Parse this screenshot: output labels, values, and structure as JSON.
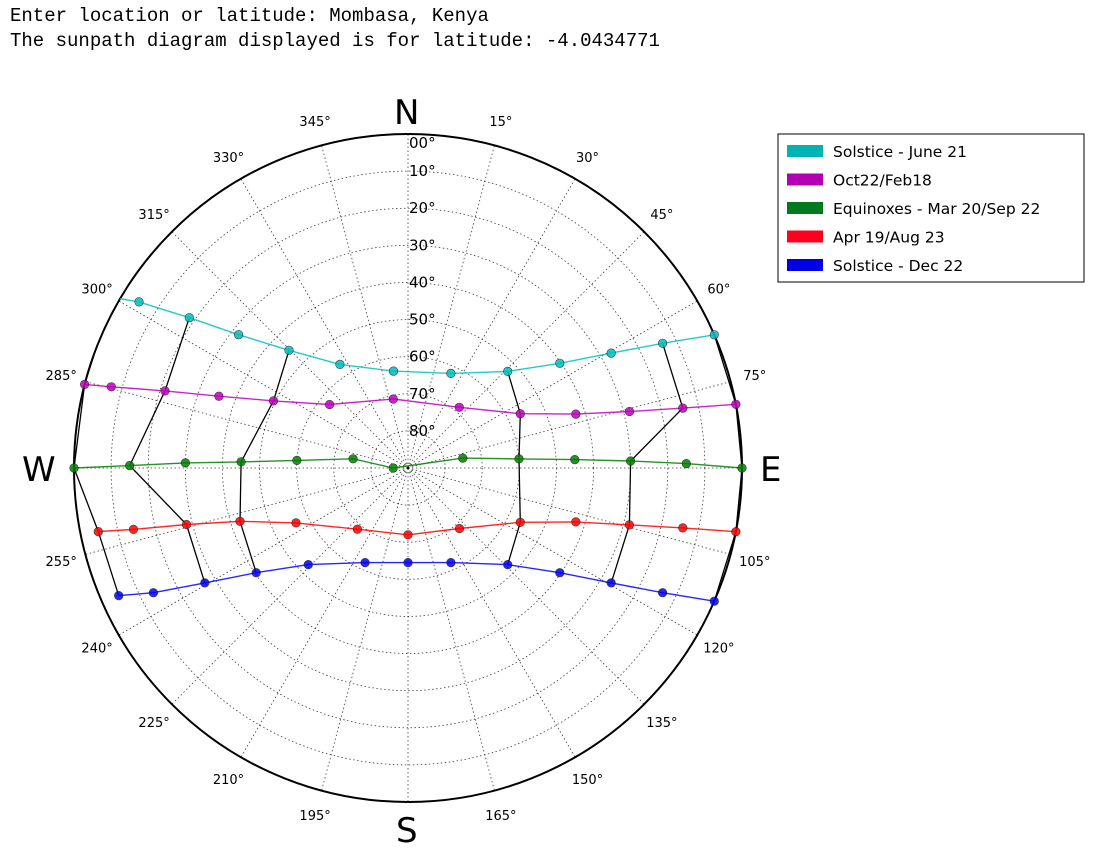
{
  "console": {
    "line1": "Enter location or latitude: Mombasa, Kenya",
    "line2": "The sunpath diagram displayed is for latitude: -4.0434771"
  },
  "chart_data": {
    "type": "polar-scatter-line",
    "projection": "sunpath (azimuth clockwise from North, altitude 0 at rim, 90 at centre)",
    "cardinals": {
      "N": "N",
      "E": "E",
      "S": "S",
      "W": "W"
    },
    "azimuth_ticks": [
      {
        "deg": 0,
        "label": "00°"
      },
      {
        "deg": 15,
        "label": "15°"
      },
      {
        "deg": 30,
        "label": "30°"
      },
      {
        "deg": 45,
        "label": "45°"
      },
      {
        "deg": 60,
        "label": "60°"
      },
      {
        "deg": 75,
        "label": "75°"
      },
      {
        "deg": 105,
        "label": "105°"
      },
      {
        "deg": 120,
        "label": "120°"
      },
      {
        "deg": 135,
        "label": "135°"
      },
      {
        "deg": 150,
        "label": "150°"
      },
      {
        "deg": 165,
        "label": "165°"
      },
      {
        "deg": 195,
        "label": "195°"
      },
      {
        "deg": 210,
        "label": "210°"
      },
      {
        "deg": 225,
        "label": "225°"
      },
      {
        "deg": 240,
        "label": "240°"
      },
      {
        "deg": 255,
        "label": "255°"
      },
      {
        "deg": 285,
        "label": "285°"
      },
      {
        "deg": 300,
        "label": "300°"
      },
      {
        "deg": 315,
        "label": "315°"
      },
      {
        "deg": 330,
        "label": "330°"
      },
      {
        "deg": 345,
        "label": "345°"
      }
    ],
    "altitude_rings": [
      10,
      20,
      30,
      40,
      50,
      60,
      70,
      80
    ],
    "altitude_labels": [
      "10°",
      "20°",
      "30°",
      "40°",
      "50°",
      "60°",
      "70°",
      "80°"
    ],
    "legend_position": "outside-right",
    "series": [
      {
        "name": "Solstice - June 21",
        "color": "#00bfbf",
        "legend_color": "#00b3b3",
        "points": [
          [
            66.5,
            0
          ],
          [
            63.9,
            13.6
          ],
          [
            60.5,
            27.1
          ],
          [
            55.4,
            40.3
          ],
          [
            45.9,
            52.6
          ],
          [
            24.4,
            62
          ],
          [
            -8.5,
            63.6
          ],
          [
            -33.3,
            56.6
          ],
          [
            -45.3,
            44.9
          ],
          [
            -51.8,
            31.9
          ],
          [
            -55.5,
            18.5
          ],
          [
            -58.3,
            4.8
          ],
          [
            -60,
            -2
          ]
        ]
      },
      {
        "name": "Oct22/Feb18",
        "color": "#bf00bf",
        "legend_color": "#b300b3",
        "points": [
          [
            79,
            0
          ],
          [
            77.7,
            14.2
          ],
          [
            75.7,
            28.4
          ],
          [
            72.2,
            42.5
          ],
          [
            64.2,
            56.4
          ],
          [
            40.2,
            68.6
          ],
          [
            -12,
            71
          ],
          [
            -51,
            62.8
          ],
          [
            -63.5,
            49.5
          ],
          [
            -69.2,
            35.5
          ],
          [
            -72.4,
            21.3
          ],
          [
            -74.7,
            7.1
          ],
          [
            -75.5,
            0
          ]
        ]
      },
      {
        "name": "Equinoxes - Mar 20/Sep 22",
        "color": "#008000",
        "legend_color": "#007a1f",
        "points": [
          [
            90,
            0
          ],
          [
            89.1,
            15
          ],
          [
            88.2,
            30
          ],
          [
            87.1,
            45
          ],
          [
            85.3,
            60
          ],
          [
            79.8,
            75
          ],
          [
            -90,
            86
          ],
          [
            -80.5,
            75
          ],
          [
            -86.1,
            60
          ],
          [
            -87.9,
            45
          ],
          [
            -88.7,
            30
          ],
          [
            -89.5,
            15
          ],
          [
            -90,
            0
          ]
        ]
      },
      {
        "name": "Apr 19/Aug 23",
        "color": "#ff0000",
        "legend_color": "#ff001f",
        "points": [
          [
            101,
            0
          ],
          [
            102.3,
            14.2
          ],
          [
            104.4,
            28.4
          ],
          [
            107.8,
            42.5
          ],
          [
            115.8,
            56.4
          ],
          [
            139.6,
            68.6
          ],
          [
            180,
            72
          ],
          [
            -140.4,
            68.6
          ],
          [
            -116.1,
            56.4
          ],
          [
            -107.6,
            42.5
          ],
          [
            -104.3,
            28.4
          ],
          [
            -102.6,
            14.2
          ],
          [
            -101.6,
            4.8
          ]
        ]
      },
      {
        "name": "Solstice - Dec 22",
        "color": "#0000ff",
        "legend_color": "#0000e6",
        "points": [
          [
            113.5,
            0
          ],
          [
            116.1,
            13.6
          ],
          [
            119.5,
            27.1
          ],
          [
            124.6,
            40.3
          ],
          [
            134.1,
            52.6
          ],
          [
            155.6,
            62
          ],
          [
            180,
            64.5
          ],
          [
            -155.6,
            62
          ],
          [
            -134.1,
            52.6
          ],
          [
            -124.6,
            40.3
          ],
          [
            -119.5,
            27.1
          ],
          [
            -116.1,
            13.6
          ],
          [
            -113.8,
            4.8
          ]
        ]
      }
    ],
    "hour_line_color": "#000000",
    "hour_lines": [
      [
        [
          -60,
          -2
        ],
        [
          -75.5,
          0
        ],
        [
          -90,
          0
        ],
        [
          -101.6,
          4.8
        ],
        [
          -113.8,
          4.8
        ]
      ],
      [
        [
          -55.5,
          18.5
        ],
        [
          -72.4,
          21.3
        ],
        [
          -89.5,
          15
        ],
        [
          -104.3,
          28.4
        ],
        [
          -119.5,
          27.1
        ]
      ],
      [
        [
          -45.3,
          44.9
        ],
        [
          -63.5,
          49.5
        ],
        [
          -87.9,
          45
        ],
        [
          -107.6,
          42.5
        ],
        [
          -124.6,
          40.3
        ]
      ],
      [
        [
          45.9,
          52.6
        ],
        [
          64.2,
          56.4
        ],
        [
          85.3,
          60
        ],
        [
          115.8,
          56.4
        ],
        [
          134.1,
          52.6
        ]
      ],
      [
        [
          63.9,
          13.6
        ],
        [
          77.7,
          14.2
        ],
        [
          88.2,
          30
        ],
        [
          104.4,
          28.4
        ],
        [
          119.5,
          27.1
        ]
      ],
      [
        [
          66.5,
          0
        ],
        [
          79,
          0
        ],
        [
          90,
          0
        ],
        [
          101,
          0
        ],
        [
          113.5,
          0
        ]
      ]
    ]
  }
}
